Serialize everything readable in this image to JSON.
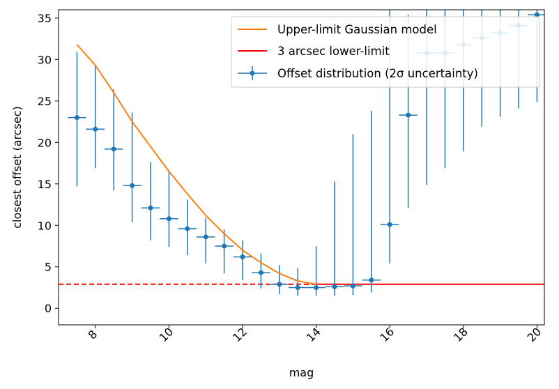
{
  "chart_data": {
    "type": "line",
    "xlabel": "mag",
    "ylabel": "closest offset (arcsec)",
    "xlim": [
      7.0,
      20.2
    ],
    "ylim": [
      -2.0,
      36.0
    ],
    "xticks": [
      8,
      10,
      12,
      14,
      16,
      18,
      20
    ],
    "yticks": [
      0,
      5,
      10,
      15,
      20,
      25,
      30,
      35
    ],
    "x_tick_rotation_deg": 45,
    "grid": false,
    "legend_position": "upper-right",
    "series": [
      {
        "name": "Upper-limit Gaussian model",
        "kind": "line",
        "color": "#ff7f0e",
        "x": [
          7.5,
          8.0,
          8.5,
          9.0,
          9.5,
          10.0,
          10.5,
          11.0,
          11.5,
          12.0,
          12.5,
          13.0,
          13.5,
          14.0
        ],
        "y": [
          31.8,
          29.3,
          26.0,
          22.5,
          19.5,
          16.5,
          13.8,
          11.2,
          9.0,
          7.0,
          5.5,
          4.2,
          3.3,
          2.9
        ]
      },
      {
        "name": "3 arcsec lower-limit",
        "kind": "hline",
        "color": "#ff0000",
        "y": 2.9,
        "dashed_until_x": 14.0
      },
      {
        "name": "Offset distribution (2σ uncertainty)",
        "kind": "errorbar",
        "color": "#1f77b4",
        "x_halfwidth": 0.25,
        "x": [
          7.5,
          8.0,
          8.5,
          9.0,
          9.5,
          10.0,
          10.5,
          11.0,
          11.5,
          12.0,
          12.5,
          13.0,
          13.5,
          14.0,
          14.5,
          15.0,
          15.5,
          16.0,
          16.5,
          17.0,
          17.5,
          18.0,
          18.5,
          19.0,
          19.5,
          20.0
        ],
        "y": [
          23.0,
          21.6,
          19.2,
          14.8,
          12.1,
          10.8,
          9.6,
          8.6,
          7.5,
          6.2,
          4.3,
          2.9,
          2.5,
          2.5,
          2.6,
          2.7,
          3.4,
          10.1,
          23.3,
          30.8,
          30.8,
          31.8,
          32.6,
          33.2,
          34.1,
          35.4
        ],
        "y_low": [
          14.7,
          16.9,
          14.2,
          10.4,
          8.2,
          7.4,
          6.4,
          5.4,
          4.2,
          3.4,
          2.4,
          1.7,
          1.5,
          1.5,
          1.5,
          1.6,
          1.9,
          5.4,
          12.1,
          14.9,
          16.9,
          18.9,
          21.9,
          23.1,
          24.1,
          24.9
        ],
        "y_high": [
          30.9,
          29.2,
          26.4,
          23.6,
          17.6,
          16.4,
          13.1,
          10.9,
          9.5,
          8.2,
          6.6,
          5.2,
          4.9,
          7.5,
          15.3,
          21.0,
          23.8,
          37.0,
          35.4,
          37.0,
          37.0,
          37.0,
          37.0,
          37.0,
          37.0,
          37.0
        ]
      }
    ]
  }
}
